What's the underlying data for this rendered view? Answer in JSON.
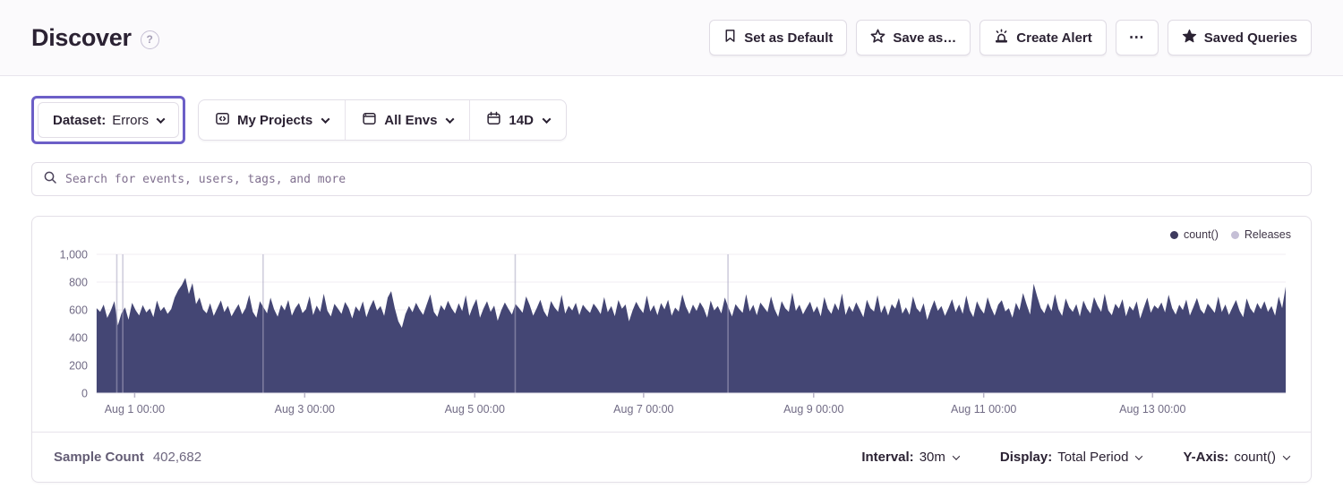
{
  "header": {
    "title": "Discover",
    "actions": {
      "set_default": "Set as Default",
      "save_as": "Save as…",
      "create_alert": "Create Alert",
      "more": "⋯",
      "saved_queries": "Saved Queries"
    }
  },
  "filters": {
    "dataset_label": "Dataset:",
    "dataset_value": "Errors",
    "projects": "My Projects",
    "environments": "All Envs",
    "date_range": "14D"
  },
  "search": {
    "placeholder": "Search for events, users, tags, and more"
  },
  "chart_data": {
    "type": "area",
    "legend": [
      {
        "label": "count()",
        "color": "#3E3A5E"
      },
      {
        "label": "Releases",
        "color": "#C5BFD6"
      }
    ],
    "legend_position": "top-right",
    "ylim": [
      0,
      1000
    ],
    "y_gridlines": [
      {
        "value": 1000,
        "label": "1,000"
      },
      {
        "value": 800,
        "label": "800"
      },
      {
        "value": 600,
        "label": "600"
      },
      {
        "value": 400,
        "label": "400"
      },
      {
        "value": 200,
        "label": "200"
      },
      {
        "value": 0,
        "label": "0"
      }
    ],
    "x_ticks": [
      {
        "label": "Aug 1 00:00",
        "pos": 0.032
      },
      {
        "label": "Aug 3 00:00",
        "pos": 0.175
      },
      {
        "label": "Aug 5 00:00",
        "pos": 0.318
      },
      {
        "label": "Aug 7 00:00",
        "pos": 0.46
      },
      {
        "label": "Aug 9 00:00",
        "pos": 0.603
      },
      {
        "label": "Aug 11 00:00",
        "pos": 0.746
      },
      {
        "label": "Aug 13 00:00",
        "pos": 0.888
      }
    ],
    "releases_pos": [
      0.017,
      0.022,
      0.14,
      0.352,
      0.531
    ],
    "release_color": "#ABA7C2",
    "series": [
      {
        "name": "count()",
        "color": "#444674",
        "values": [
          612,
          586,
          638,
          542,
          595,
          663,
          488,
          574,
          618,
          529,
          651,
          597,
          560,
          634,
          581,
          610,
          548,
          667,
          592,
          622,
          571,
          605,
          689,
          742,
          778,
          831,
          715,
          793,
          641,
          689,
          602,
          575,
          648,
          557,
          612,
          668,
          584,
          629,
          553,
          598,
          641,
          568,
          612,
          707,
          586,
          543,
          662,
          619,
          575,
          688,
          604,
          551,
          637,
          596,
          671,
          558,
          613,
          649,
          577,
          605,
          698,
          562,
          631,
          586,
          716,
          594,
          552,
          643,
          608,
          571,
          657,
          613,
          538,
          625,
          589,
          661,
          547,
          618,
          672,
          595,
          628,
          556,
          689,
          735,
          612,
          517,
          471,
          569,
          627,
          583,
          651,
          602,
          564,
          639,
          711,
          586,
          549,
          634,
          597,
          665,
          611,
          573,
          648,
          591,
          705,
          557,
          623,
          678,
          544,
          609,
          662,
          585,
          631,
          521,
          597,
          653,
          608,
          566,
          642,
          613,
          579,
          697,
          635,
          558,
          612,
          673,
          591,
          548,
          664,
          619,
          586,
          708,
          573,
          629,
          595,
          651,
          562,
          637,
          604,
          578,
          645,
          611,
          569,
          692,
          583,
          627,
          554,
          671,
          608,
          639,
          517,
          596,
          658,
          612,
          577,
          703,
          588,
          634,
          561,
          649,
          603,
          672,
          558,
          616,
          587,
          711,
          624,
          569,
          638,
          592,
          655,
          611,
          543,
          667,
          596,
          628,
          574,
          689,
          615,
          552,
          641,
          607,
          578,
          713,
          589,
          636,
          561,
          652,
          618,
          583,
          697,
          605,
          549,
          663,
          611,
          586,
          724,
          592,
          637,
          568,
          614,
          659,
          581,
          626,
          553,
          692,
          607,
          571,
          648,
          595,
          718,
          563,
          629,
          586,
          654,
          601,
          547,
          673,
          612,
          588,
          706,
          577,
          633,
          559,
          641,
          608,
          685,
          572,
          619,
          564,
          697,
          611,
          582,
          648,
          527,
          603,
          669,
          593,
          628,
          556,
          612,
          677,
          584,
          639,
          571,
          703,
          596,
          548,
          662,
          607,
          573,
          691,
          615,
          558,
          637,
          669,
          589,
          612,
          544,
          651,
          597,
          721,
          638,
          566,
          788,
          694,
          612,
          575,
          648,
          591,
          713,
          603,
          557,
          682,
          619,
          586,
          641,
          552,
          667,
          608,
          574,
          692,
          631,
          585,
          716,
          597,
          561,
          643,
          609,
          677,
          553,
          628,
          594,
          661,
          537,
          615,
          688,
          579,
          632,
          607,
          653,
          581,
          709,
          612,
          566,
          637,
          598,
          674,
          559,
          621,
          686,
          602,
          571,
          645,
          612,
          578,
          696,
          584,
          639,
          563,
          618,
          671,
          593,
          547,
          682,
          611,
          576,
          649,
          604,
          662,
          585,
          627,
          558,
          696,
          612,
          768
        ]
      }
    ]
  },
  "chart_footer": {
    "sample_count_label": "Sample Count",
    "sample_count_value": "402,682",
    "interval_label": "Interval:",
    "interval_value": "30m",
    "display_label": "Display:",
    "display_value": "Total Period",
    "yaxis_label": "Y-Axis:",
    "yaxis_value": "count()"
  },
  "colors": {
    "accent": "#6C5FC7",
    "chart_fill": "#444674"
  }
}
